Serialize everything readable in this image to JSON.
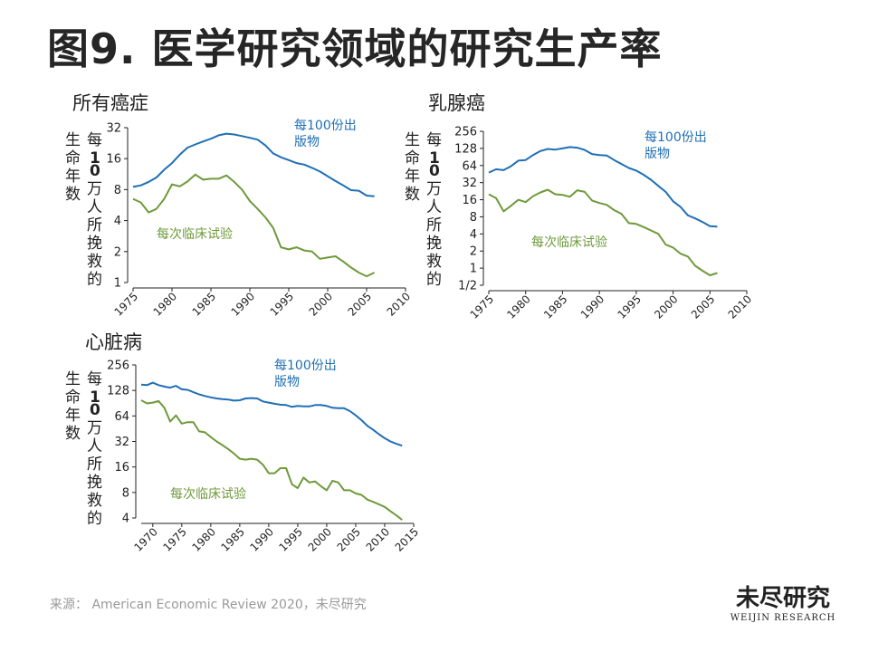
{
  "title": "图9. 医学研究领域的研究生产率",
  "y_label_outer": "生命年数",
  "y_label_inner_prefix": "每",
  "y_label_inner_number": "10",
  "y_label_inner_suffix": "万人所挽救的",
  "source": "来源： American Economic Review 2020，未尽研究",
  "logo": {
    "cn": "未尽研究",
    "en": "WEIJIN RESEARCH"
  },
  "colors": {
    "publications": "#1f6fb5",
    "trials": "#6e9a3a"
  },
  "chart_data": [
    {
      "type": "line",
      "title": "所有癌症",
      "y_scale": "log2",
      "ylim": [
        1,
        32
      ],
      "yticks": [
        "1",
        "2",
        "4",
        "8",
        "16",
        "32"
      ],
      "yticks_values": [
        1,
        2,
        4,
        8,
        16,
        32
      ],
      "xlim": [
        1975,
        2010
      ],
      "xticks": [
        "1975",
        "1980",
        "1985",
        "1990",
        "1995",
        "2000",
        "2005",
        "2010"
      ],
      "series": [
        {
          "name": "每100份出版物",
          "x": [
            1975,
            1976,
            1977,
            1978,
            1979,
            1980,
            1981,
            1982,
            1983,
            1984,
            1985,
            1986,
            1987,
            1988,
            1989,
            1990,
            1991,
            1992,
            1993,
            1994,
            1995,
            1996,
            1997,
            1998,
            1999,
            2000,
            2001,
            2002,
            2003,
            2004,
            2005,
            2006
          ],
          "values": [
            8.5,
            8.8,
            9.5,
            10.5,
            12.5,
            14.5,
            17.5,
            20.5,
            22,
            23.5,
            25,
            27,
            28,
            27.5,
            26.5,
            25.5,
            24.5,
            21.5,
            18,
            16.5,
            15.5,
            14.5,
            14,
            13,
            12,
            10.8,
            9.7,
            8.8,
            7.9,
            7.8,
            7,
            6.9
          ]
        },
        {
          "name": "每次临床试验",
          "x": [
            1975,
            1976,
            1977,
            1978,
            1979,
            1980,
            1981,
            1982,
            1983,
            1984,
            1985,
            1986,
            1987,
            1988,
            1989,
            1990,
            1991,
            1992,
            1993,
            1994,
            1995,
            1996,
            1997,
            1998,
            1999,
            2000,
            2001,
            2002,
            2003,
            2004,
            2005,
            2006
          ],
          "values": [
            6.5,
            6,
            4.8,
            5.2,
            6.5,
            9,
            8.6,
            9.6,
            11.2,
            10,
            10.2,
            10.2,
            11,
            9.5,
            8,
            6.2,
            5.2,
            4.3,
            3.4,
            2.2,
            2.1,
            2.2,
            2.05,
            2,
            1.7,
            1.75,
            1.8,
            1.6,
            1.4,
            1.25,
            1.15,
            1.25
          ]
        }
      ]
    },
    {
      "type": "line",
      "title": "乳腺癌",
      "y_scale": "log2",
      "ylim": [
        0.5,
        256
      ],
      "yticks": [
        "1/2",
        "1",
        "2",
        "4",
        "8",
        "16",
        "32",
        "64",
        "128",
        "256"
      ],
      "yticks_values": [
        0.5,
        1,
        2,
        4,
        8,
        16,
        32,
        64,
        128,
        256
      ],
      "xlim": [
        1975,
        2010
      ],
      "xticks": [
        "1975",
        "1980",
        "1985",
        "1990",
        "1995",
        "2000",
        "2005",
        "2010"
      ],
      "series": [
        {
          "name": "每100份出版物",
          "x": [
            1975,
            1976,
            1977,
            1978,
            1979,
            1980,
            1981,
            1982,
            1983,
            1984,
            1985,
            1986,
            1987,
            1988,
            1989,
            1990,
            1991,
            1992,
            1993,
            1994,
            1995,
            1996,
            1997,
            1998,
            1999,
            2000,
            2001,
            2002,
            2003,
            2004,
            2005,
            2006
          ],
          "values": [
            48,
            55,
            53,
            62,
            78,
            80,
            98,
            115,
            125,
            122,
            128,
            135,
            132,
            120,
            102,
            98,
            96,
            80,
            68,
            58,
            52,
            44,
            36,
            28,
            22,
            15,
            12,
            8.5,
            7.5,
            6.5,
            5.5,
            5.4
          ]
        },
        {
          "name": "每次临床试验",
          "x": [
            1975,
            1976,
            1977,
            1978,
            1979,
            1980,
            1981,
            1982,
            1983,
            1984,
            1985,
            1986,
            1987,
            1988,
            1989,
            1990,
            1991,
            1992,
            1993,
            1994,
            1995,
            1996,
            1997,
            1998,
            1999,
            2000,
            2001,
            2002,
            2003,
            2004,
            2005,
            2006
          ],
          "values": [
            20,
            17,
            10,
            12.5,
            16,
            14.5,
            18.5,
            21.5,
            24,
            20,
            19.5,
            18,
            23.5,
            22,
            15.5,
            14,
            13,
            10.5,
            9,
            6.2,
            6,
            5.3,
            4.6,
            4,
            2.6,
            2.3,
            1.8,
            1.6,
            1.1,
            0.9,
            0.75,
            0.82
          ]
        }
      ]
    },
    {
      "type": "line",
      "title": "心脏病",
      "y_scale": "log2",
      "ylim": [
        4,
        256
      ],
      "yticks": [
        "4",
        "8",
        "16",
        "32",
        "64",
        "128",
        "256"
      ],
      "yticks_values": [
        4,
        8,
        16,
        32,
        64,
        128,
        256
      ],
      "xlim": [
        1968,
        2015
      ],
      "xticks": [
        "1970",
        "1975",
        "1980",
        "1985",
        "1990",
        "1995",
        "2000",
        "2005",
        "2010",
        "2015"
      ],
      "series": [
        {
          "name": "每100份出版物",
          "x": [
            1968,
            1969,
            1970,
            1971,
            1972,
            1973,
            1974,
            1975,
            1976,
            1977,
            1978,
            1979,
            1980,
            1981,
            1982,
            1983,
            1984,
            1985,
            1986,
            1987,
            1988,
            1989,
            1990,
            1991,
            1992,
            1993,
            1994,
            1995,
            1996,
            1997,
            1998,
            1999,
            2000,
            2001,
            2002,
            2003,
            2004,
            2005,
            2006,
            2007,
            2008,
            2009,
            2010,
            2011,
            2012,
            2013
          ],
          "values": [
            150,
            148,
            158,
            148,
            142,
            138,
            145,
            132,
            130,
            122,
            115,
            110,
            106,
            103,
            101,
            100,
            97,
            98,
            103,
            104,
            103,
            95,
            92,
            89,
            87,
            86,
            82,
            84,
            83,
            83,
            86,
            86,
            84,
            80,
            79,
            79,
            73,
            65,
            57,
            49,
            44,
            39,
            35,
            32,
            30,
            28.5
          ]
        },
        {
          "name": "每次临床试验",
          "x": [
            1968,
            1969,
            1970,
            1971,
            1972,
            1973,
            1974,
            1975,
            1976,
            1977,
            1978,
            1979,
            1980,
            1981,
            1982,
            1983,
            1984,
            1985,
            1986,
            1987,
            1988,
            1989,
            1990,
            1991,
            1992,
            1993,
            1994,
            1995,
            1996,
            1997,
            1998,
            1999,
            2000,
            2001,
            2002,
            2003,
            2004,
            2005,
            2006,
            2007,
            2008,
            2009,
            2010,
            2011,
            2012,
            2013
          ],
          "values": [
            98,
            90,
            92,
            96,
            80,
            55,
            65,
            52,
            54,
            54,
            42,
            41,
            36,
            32,
            29,
            26,
            23,
            20,
            19.5,
            20,
            19.5,
            17,
            13.5,
            13.5,
            15.5,
            15.5,
            10,
            9,
            12,
            10.5,
            10.8,
            9.5,
            8.5,
            11,
            10.5,
            8.5,
            8.5,
            7.8,
            7.5,
            6.6,
            6.2,
            5.8,
            5.4,
            4.8,
            4.3,
            3.8
          ]
        }
      ]
    }
  ]
}
